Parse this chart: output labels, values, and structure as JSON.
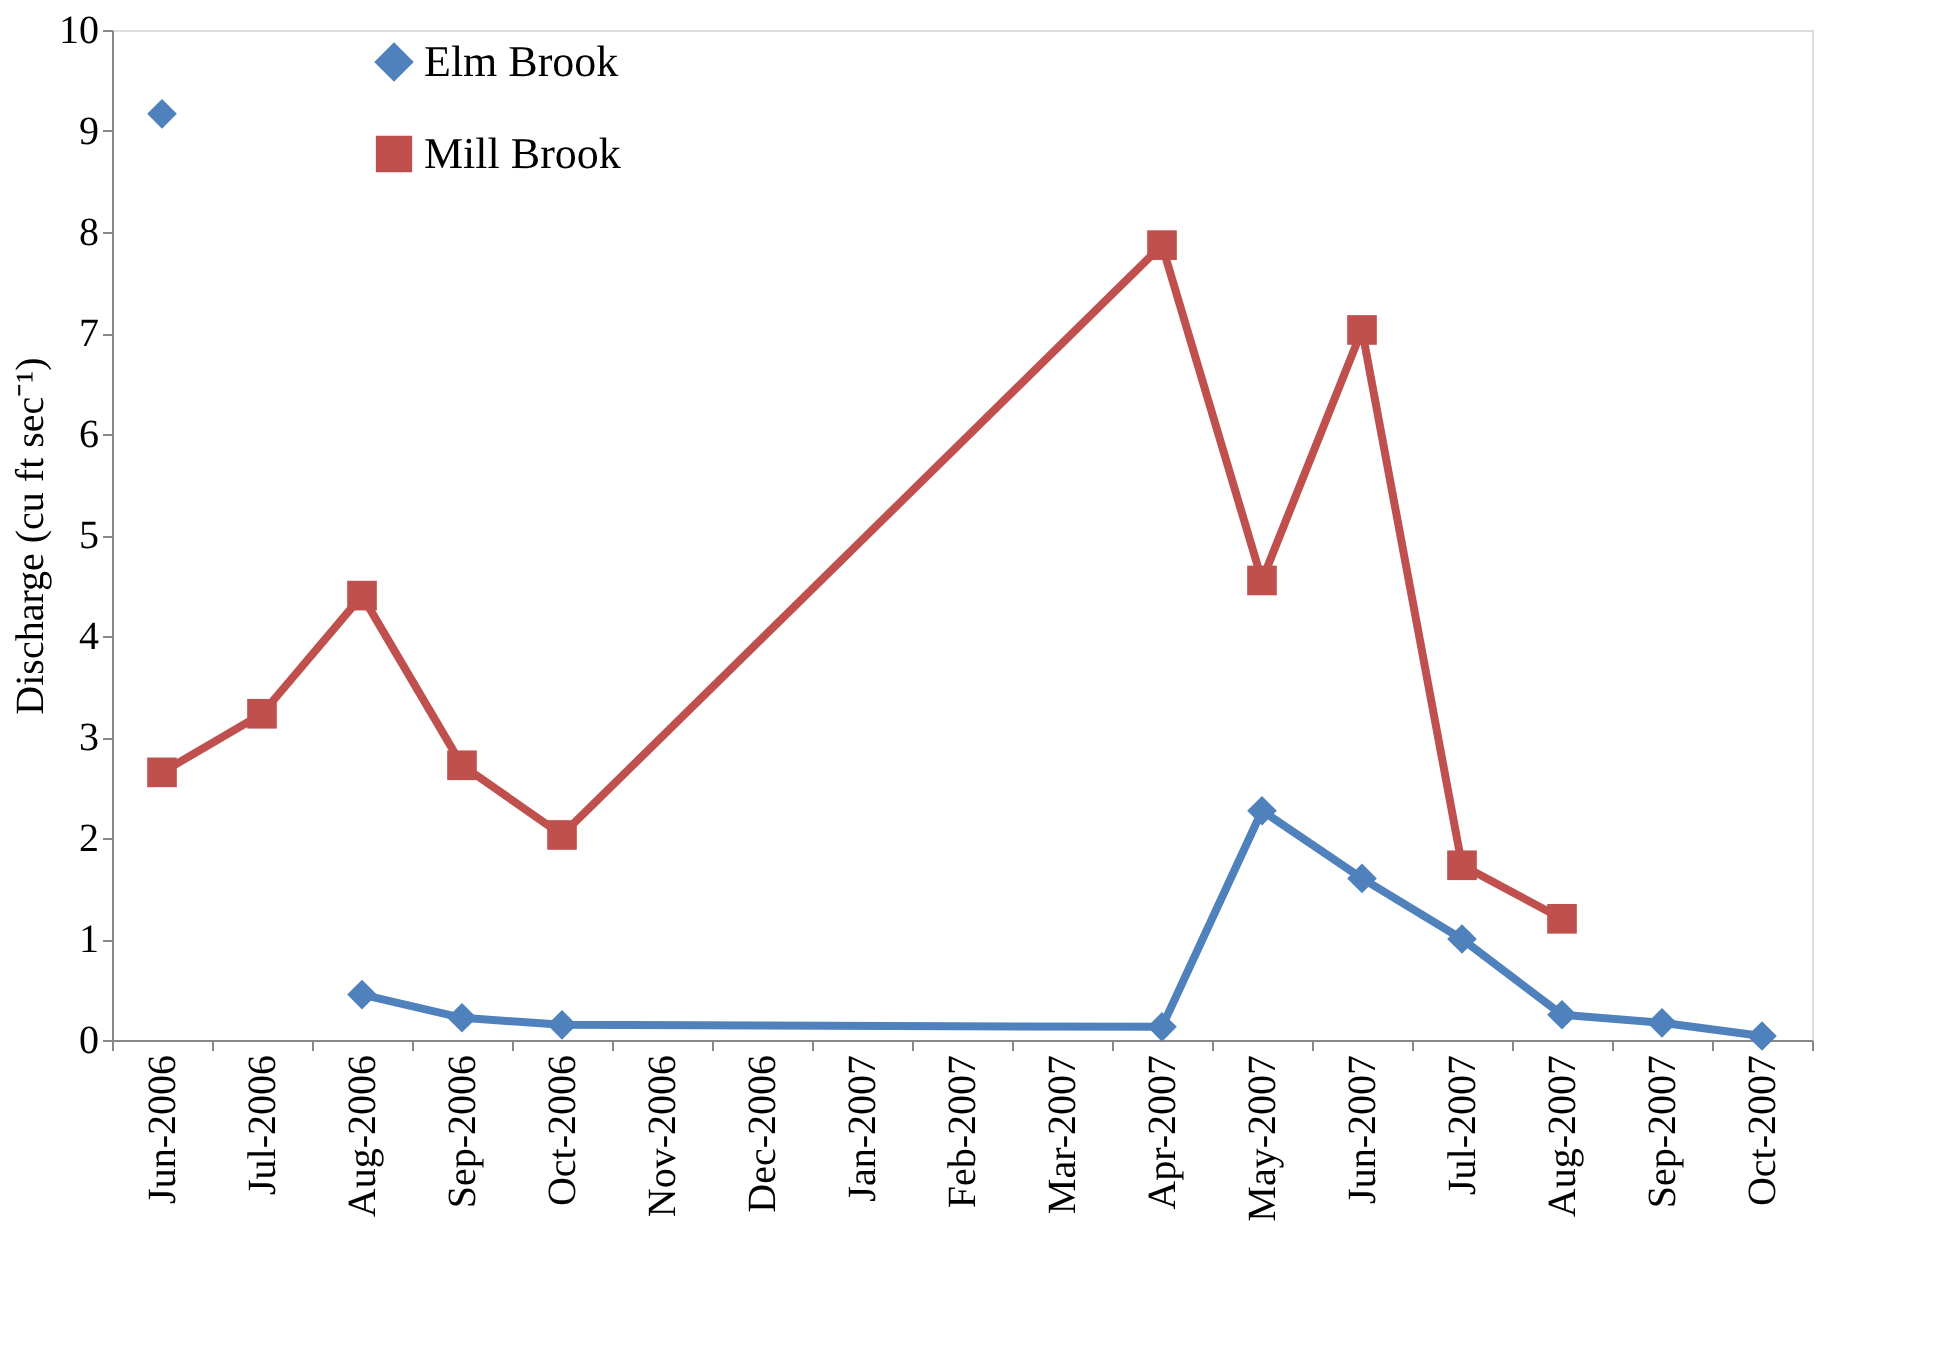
{
  "chart_data": {
    "type": "line",
    "ylabel": "Discharge (cu ft sec⁻¹)",
    "categories": [
      "Jun-2006",
      "Jul-2006",
      "Aug-2006",
      "Sep-2006",
      "Oct-2006",
      "Nov-2006",
      "Dec-2006",
      "Jan-2007",
      "Feb-2007",
      "Mar-2007",
      "Apr-2007",
      "May-2007",
      "Jun-2007",
      "Jul-2007",
      "Aug-2007",
      "Sep-2007",
      "Oct-2007"
    ],
    "series": [
      {
        "name": "Elm Brook",
        "color": "#4f81bd",
        "marker": "diamond",
        "x": [
          "Jun-2006",
          "Jul-2006",
          "Aug-2006",
          "Sep-2006",
          "Oct-2006",
          "Apr-2007",
          "May-2007",
          "Jun-2007",
          "Jul-2007",
          "Aug-2007",
          "Sep-2007",
          "Oct-2007"
        ],
        "values": [
          9.17,
          null,
          0.45,
          0.22,
          0.15,
          0.13,
          2.27,
          1.6,
          1.0,
          0.25,
          0.17,
          0.04
        ]
      },
      {
        "name": "Mill Brook",
        "color": "#c0504d",
        "marker": "square",
        "x": [
          "Jun-2006",
          "Jul-2006",
          "Aug-2006",
          "Sep-2006",
          "Oct-2006",
          "Apr-2007",
          "May-2007",
          "Jun-2007",
          "Jul-2007",
          "Aug-2007"
        ],
        "values": [
          2.65,
          3.23,
          4.4,
          2.72,
          2.03,
          7.87,
          4.55,
          7.03,
          1.73,
          1.2
        ]
      }
    ],
    "ylim": [
      0,
      10
    ],
    "yticks": [
      0,
      1,
      2,
      3,
      4,
      5,
      6,
      7,
      8,
      9,
      10
    ],
    "grid": false,
    "legend": "top left",
    "line_style": "solid"
  }
}
